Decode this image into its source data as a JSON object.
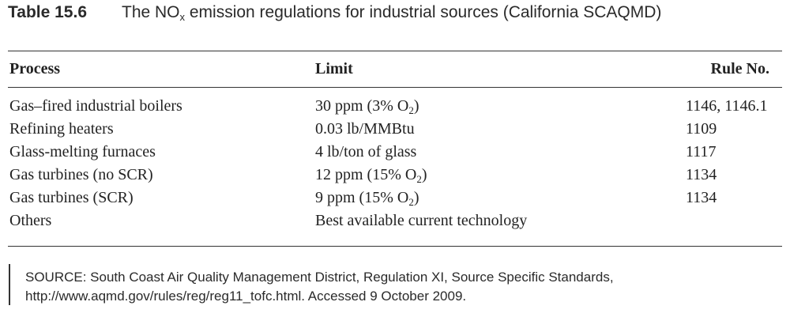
{
  "caption": {
    "label": "Table 15.6",
    "title_pre": "The NO",
    "title_sub": "x",
    "title_post": " emission regulations for industrial sources (California SCAQMD)"
  },
  "table": {
    "headers": {
      "process": "Process",
      "limit": "Limit",
      "rule": "Rule No."
    },
    "rows": [
      {
        "process": "Gas–fired industrial boilers",
        "limit_pre": "30 ppm (3% O",
        "limit_sub": "2",
        "limit_post": ")",
        "rule": "1146, 1146.1"
      },
      {
        "process": "Refining heaters",
        "limit_pre": "0.03 lb/MMBtu",
        "limit_sub": "",
        "limit_post": "",
        "rule": "1109"
      },
      {
        "process": "Glass-melting furnaces",
        "limit_pre": "4 lb/ton of glass",
        "limit_sub": "",
        "limit_post": "",
        "rule": "1117"
      },
      {
        "process": "Gas turbines (no SCR)",
        "limit_pre": "12 ppm (15% O",
        "limit_sub": "2",
        "limit_post": ")",
        "rule": "1134"
      },
      {
        "process": "Gas turbines (SCR)",
        "limit_pre": "9 ppm (15% O",
        "limit_sub": "2",
        "limit_post": ")",
        "rule": "1134"
      },
      {
        "process": "Others",
        "limit_pre": "Best available current technology",
        "limit_sub": "",
        "limit_post": "",
        "rule": ""
      }
    ]
  },
  "source": {
    "line1": "SOURCE: South Coast Air Quality Management District, Regulation XI, Source Specific Standards,",
    "line2": "http://www.aqmd.gov/rules/reg/reg11_tofc.html. Accessed 9 October 2009."
  }
}
